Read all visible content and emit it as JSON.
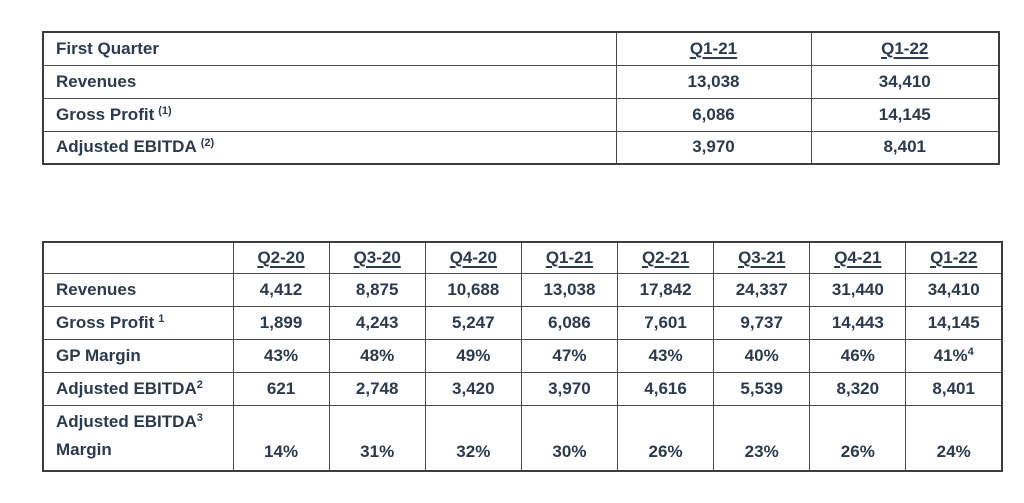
{
  "colors": {
    "text": "#2b3a4d",
    "border_outer": "#3d3d3d",
    "border_inner": "#4a4a4a",
    "background": "#ffffff"
  },
  "table1": {
    "header": {
      "label": "First Quarter",
      "columns": [
        "Q1-21",
        "Q1-22"
      ]
    },
    "rows": [
      {
        "label": "Revenues",
        "values": [
          "13,038",
          "34,410"
        ]
      },
      {
        "label": "Gross Profit",
        "sup": "(1)",
        "values": [
          "6,086",
          "14,145"
        ]
      },
      {
        "label": "Adjusted EBITDA",
        "sup": "(2)",
        "values": [
          "3,970",
          "8,401"
        ]
      }
    ]
  },
  "table2": {
    "header": {
      "label": "",
      "columns": [
        "Q2-20",
        "Q3-20",
        "Q4-20",
        "Q1-21",
        "Q2-21",
        "Q3-21",
        "Q4-21",
        "Q1-22"
      ]
    },
    "rows": [
      {
        "label": "Revenues",
        "values": [
          "4,412",
          "8,875",
          "10,688",
          "13,038",
          "17,842",
          "24,337",
          "31,440",
          "34,410"
        ]
      },
      {
        "label": "Gross Profit",
        "sup": "1",
        "values": [
          "1,899",
          "4,243",
          "5,247",
          "6,086",
          "7,601",
          "9,737",
          "14,443",
          "14,145"
        ]
      },
      {
        "label": "GP Margin",
        "last_value_sup": "4",
        "values": [
          "43%",
          "48%",
          "49%",
          "47%",
          "43%",
          "40%",
          "46%",
          "41%"
        ]
      },
      {
        "label": "Adjusted EBITDA",
        "sup": "2",
        "values": [
          "621",
          "2,748",
          "3,420",
          "3,970",
          "4,616",
          "5,539",
          "8,320",
          "8,401"
        ]
      },
      {
        "label": "Adjusted EBITDA",
        "sup": "3",
        "label_line2": "Margin",
        "values": [
          "14%",
          "31%",
          "32%",
          "30%",
          "26%",
          "23%",
          "26%",
          "24%"
        ]
      }
    ]
  }
}
